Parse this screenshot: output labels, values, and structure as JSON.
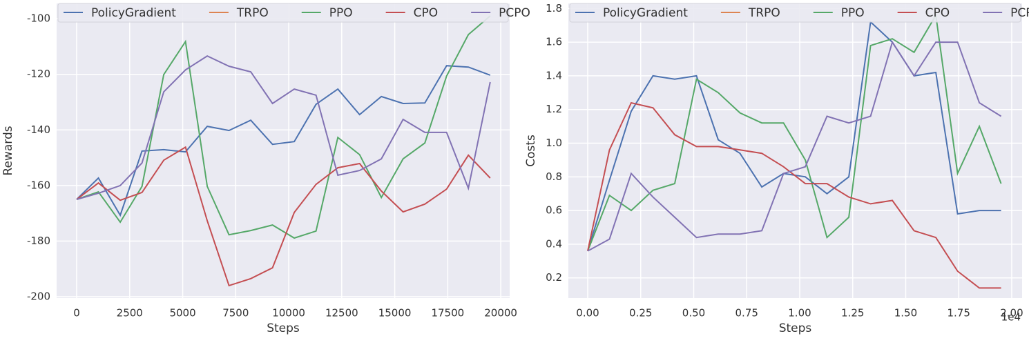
{
  "chart_data": [
    {
      "type": "line",
      "xlabel": "Steps",
      "ylabel": "Rewards",
      "x": [
        0,
        1026,
        2053,
        3079,
        4105,
        5132,
        6158,
        7184,
        8211,
        9237,
        10263,
        11289,
        12316,
        13342,
        14368,
        15395,
        16421,
        17447,
        18474,
        19500
      ],
      "series": [
        {
          "name": "PolicyGradient",
          "color": "#4c72b0",
          "values": [
            -165,
            -157.3,
            -170.7,
            -147.6,
            -147.1,
            -147.9,
            -138.7,
            -140.2,
            -136.5,
            -145.2,
            -144.2,
            -130.8,
            -125.3,
            -134.5,
            -128,
            -130.5,
            -130.3,
            -116.9,
            -117.4,
            -120.3
          ]
        },
        {
          "name": "TRPO",
          "color": "#dd8452",
          "values": [
            null,
            null,
            null,
            null,
            null,
            null,
            null,
            null,
            null,
            null,
            null,
            null,
            null,
            null,
            null,
            null,
            null,
            null,
            null,
            null
          ]
        },
        {
          "name": "PPO",
          "color": "#55a868",
          "values": [
            -165,
            -162.3,
            -173.2,
            -160.3,
            -120.1,
            -108.2,
            -160.3,
            -177.7,
            -176.2,
            -174.2,
            -178.9,
            -176.4,
            -142.7,
            -148.9,
            -164.3,
            -150.4,
            -144.7,
            -120.6,
            -105.7,
            -99
          ]
        },
        {
          "name": "CPO",
          "color": "#c44e52",
          "values": [
            -165,
            -159.1,
            -165.3,
            -162.5,
            -150.9,
            -146.2,
            -172.7,
            -196,
            -193.5,
            -189.6,
            -169.7,
            -159.6,
            -153.6,
            -152.1,
            -162,
            -169.5,
            -166.7,
            -161.3,
            -149.1,
            -157.3
          ]
        },
        {
          "name": "PCPO",
          "color": "#8172b3",
          "values": [
            -165,
            -162.8,
            -160,
            -151.9,
            -126.3,
            -118.4,
            -113.4,
            -117.1,
            -119.1,
            -130.5,
            -125.3,
            -127.5,
            -156.3,
            -154.6,
            -150.4,
            -136.2,
            -140.9,
            -140.9,
            -161,
            -122.8
          ]
        }
      ],
      "xlim": [
        -945,
        20420
      ],
      "ylim": [
        -200.5,
        -94.5
      ],
      "xticks": [
        0,
        2500,
        5000,
        7500,
        10000,
        12500,
        15000,
        17500,
        20000
      ],
      "yticks": [
        -200,
        -180,
        -160,
        -140,
        -120,
        -100
      ],
      "grid": true,
      "legend": "upper center"
    },
    {
      "type": "line",
      "xlabel": "Steps",
      "ylabel": "Costs",
      "x_offset_label": "1e4",
      "x": [
        0,
        1026,
        2053,
        3079,
        4105,
        5132,
        6158,
        7184,
        8211,
        9237,
        10263,
        11289,
        12316,
        13342,
        14368,
        15395,
        16421,
        17447,
        18474,
        19500
      ],
      "series": [
        {
          "name": "PolicyGradient",
          "color": "#4c72b0",
          "values": [
            0.36,
            0.78,
            1.19,
            1.4,
            1.38,
            1.4,
            1.02,
            0.94,
            0.74,
            0.82,
            0.8,
            0.7,
            0.8,
            1.72,
            1.6,
            1.4,
            1.42,
            0.58,
            0.6,
            0.6
          ]
        },
        {
          "name": "TRPO",
          "color": "#dd8452",
          "values": [
            null,
            null,
            null,
            null,
            null,
            null,
            null,
            null,
            null,
            null,
            null,
            null,
            null,
            null,
            null,
            null,
            null,
            null,
            null,
            null
          ]
        },
        {
          "name": "PPO",
          "color": "#55a868",
          "values": [
            0.36,
            0.69,
            0.6,
            0.72,
            0.76,
            1.38,
            1.3,
            1.18,
            1.12,
            1.12,
            0.9,
            0.44,
            0.56,
            1.58,
            1.62,
            1.54,
            1.76,
            0.82,
            1.1,
            0.76
          ]
        },
        {
          "name": "CPO",
          "color": "#c44e52",
          "values": [
            0.36,
            0.96,
            1.24,
            1.21,
            1.05,
            0.98,
            0.98,
            0.96,
            0.94,
            0.86,
            0.76,
            0.76,
            0.68,
            0.64,
            0.66,
            0.48,
            0.44,
            0.24,
            0.14,
            0.14
          ]
        },
        {
          "name": "PCPO",
          "color": "#8172b3",
          "values": [
            0.36,
            0.43,
            0.82,
            0.68,
            0.56,
            0.44,
            0.46,
            0.46,
            0.48,
            0.82,
            0.86,
            1.16,
            1.12,
            1.16,
            1.6,
            1.4,
            1.6,
            1.6,
            1.24,
            1.16
          ]
        }
      ],
      "xlim": [
        -912,
        20490
      ],
      "ylim": [
        0.08,
        1.83
      ],
      "xticks": [
        {
          "value": 0,
          "label": "0.00"
        },
        {
          "value": 2500,
          "label": "0.25"
        },
        {
          "value": 5000,
          "label": "0.50"
        },
        {
          "value": 7500,
          "label": "0.75"
        },
        {
          "value": 10000,
          "label": "1.00"
        },
        {
          "value": 12500,
          "label": "1.25"
        },
        {
          "value": 15000,
          "label": "1.50"
        },
        {
          "value": 17500,
          "label": "1.75"
        },
        {
          "value": 20000,
          "label": "2.00"
        }
      ],
      "yticks": [
        0.2,
        0.4,
        0.6,
        0.8,
        {
          "value": 1,
          "label": "1.0"
        },
        1.2,
        1.4,
        1.6,
        1.8
      ],
      "grid": true,
      "legend": "upper center"
    }
  ]
}
